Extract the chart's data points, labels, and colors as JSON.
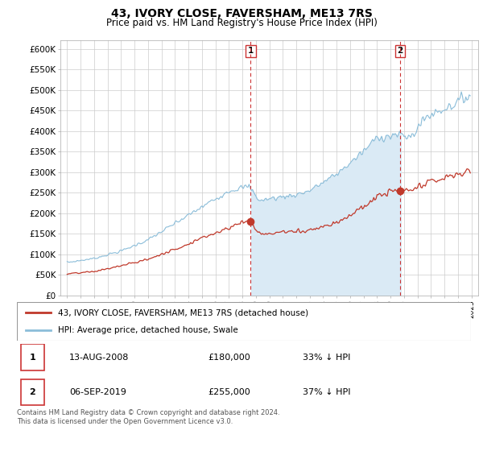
{
  "title": "43, IVORY CLOSE, FAVERSHAM, ME13 7RS",
  "subtitle": "Price paid vs. HM Land Registry's House Price Index (HPI)",
  "ylim": [
    0,
    620000
  ],
  "yticks": [
    0,
    50000,
    100000,
    150000,
    200000,
    250000,
    300000,
    350000,
    400000,
    450000,
    500000,
    550000,
    600000
  ],
  "ytick_labels": [
    "£0",
    "£50K",
    "£100K",
    "£150K",
    "£200K",
    "£250K",
    "£300K",
    "£350K",
    "£400K",
    "£450K",
    "£500K",
    "£550K",
    "£600K"
  ],
  "sale1_year": 2008,
  "sale1_month": 8,
  "sale1_price": 180000,
  "sale2_year": 2019,
  "sale2_month": 9,
  "sale2_price": 255000,
  "hpi_color": "#8bbdd9",
  "hpi_fill_color": "#daeaf5",
  "price_color": "#c0392b",
  "vline_color": "#cc3333",
  "box_edge_color": "#cc3333",
  "legend_label1": "43, IVORY CLOSE, FAVERSHAM, ME13 7RS (detached house)",
  "legend_label2": "HPI: Average price, detached house, Swale",
  "table_row1": [
    "1",
    "13-AUG-2008",
    "£180,000",
    "33% ↓ HPI"
  ],
  "table_row2": [
    "2",
    "06-SEP-2019",
    "£255,000",
    "37% ↓ HPI"
  ],
  "footer": "Contains HM Land Registry data © Crown copyright and database right 2024.\nThis data is licensed under the Open Government Licence v3.0.",
  "grid_color": "#cccccc",
  "start_year": 1995,
  "end_year": 2025
}
